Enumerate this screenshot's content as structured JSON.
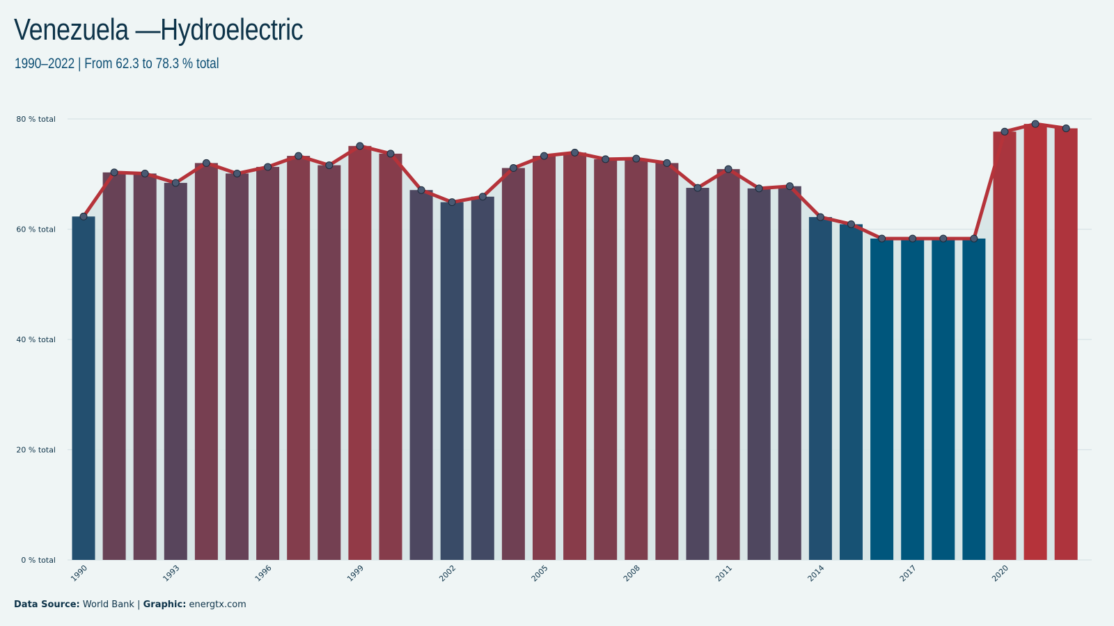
{
  "title": "Venezuela —Hydroelectric",
  "subtitle": "1990–2022 | From 62.3 to 78.3 % total",
  "footer": {
    "source_label": "Data Source:",
    "source_value": "World Bank",
    "separator": "|",
    "graphic_label": "Graphic:",
    "graphic_value": "energtx.com"
  },
  "chart_data": {
    "type": "bar",
    "title": "Venezuela —Hydroelectric",
    "subtitle": "1990–2022 | From 62.3 to 78.3 % total",
    "categories": [
      1990,
      1991,
      1992,
      1993,
      1994,
      1995,
      1996,
      1997,
      1998,
      1999,
      2000,
      2001,
      2002,
      2003,
      2004,
      2005,
      2006,
      2007,
      2008,
      2009,
      2010,
      2011,
      2012,
      2013,
      2014,
      2015,
      2016,
      2017,
      2018,
      2019,
      2020,
      2021,
      2022
    ],
    "values": [
      62.3,
      70.3,
      70.1,
      68.4,
      72.0,
      70.1,
      71.3,
      73.3,
      71.6,
      75.1,
      73.7,
      67.1,
      64.9,
      65.9,
      71.1,
      73.3,
      73.9,
      72.7,
      72.8,
      72.0,
      67.5,
      70.9,
      67.4,
      67.8,
      62.2,
      60.9,
      58.3,
      58.3,
      58.3,
      58.3,
      77.7,
      79.1,
      78.3
    ],
    "ylim": [
      0,
      80
    ],
    "yticks": [
      0,
      20,
      40,
      60,
      80
    ],
    "ytick_labels": [
      "0 % total",
      "20 % total",
      "40 % total",
      "60 % total",
      "80 % total"
    ],
    "xtick_labels": [
      "1990",
      "1993",
      "1996",
      "1999",
      "2002",
      "2005",
      "2008",
      "2011",
      "2014",
      "2017",
      "2020"
    ],
    "xlabel": "",
    "ylabel": "",
    "grid": true,
    "overlay": "line with markers over bars",
    "colors": {
      "low": "#00567c",
      "high": "#b5333a",
      "line": "#b5333a",
      "marker": "#4a5a73",
      "grid": "#d8e3e6",
      "area": "#d6e4e6"
    }
  }
}
